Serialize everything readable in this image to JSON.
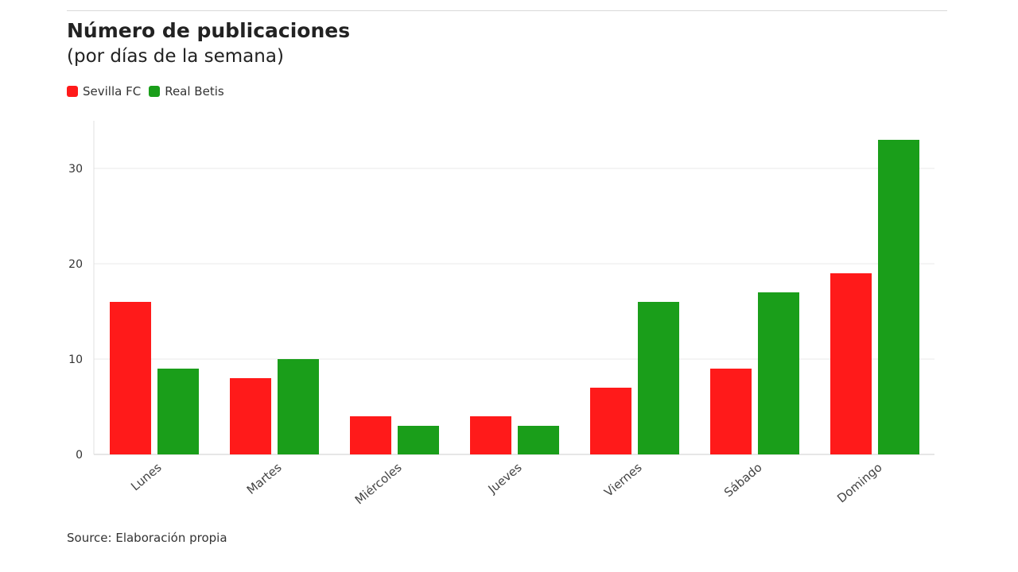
{
  "header": {
    "title": "Número de publicaciones",
    "subtitle": "(por días de la semana)"
  },
  "legend": {
    "items": [
      {
        "label": "Sevilla FC",
        "color": "#ff1a1a"
      },
      {
        "label": "Real Betis",
        "color": "#1a9e1a"
      }
    ]
  },
  "footer": {
    "source": "Source: Elaboración propia"
  },
  "chart_data": {
    "type": "bar",
    "categories": [
      "Lunes",
      "Martes",
      "Miércoles",
      "Jueves",
      "Viernes",
      "Sábado",
      "Domingo"
    ],
    "series": [
      {
        "name": "Sevilla FC",
        "color": "#ff1a1a",
        "values": [
          16,
          8,
          4,
          4,
          7,
          9,
          19
        ]
      },
      {
        "name": "Real Betis",
        "color": "#1a9e1a",
        "values": [
          9,
          10,
          3,
          3,
          16,
          17,
          33
        ]
      }
    ],
    "ylim": [
      0,
      35
    ],
    "yticks": [
      0,
      10,
      20,
      30
    ],
    "grid": true,
    "legend_position": "top-left"
  }
}
